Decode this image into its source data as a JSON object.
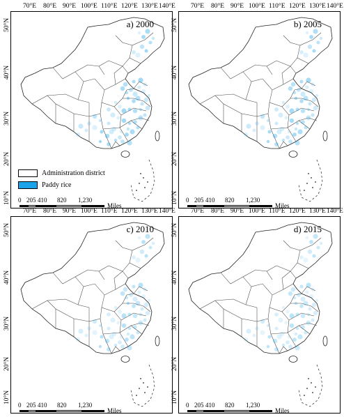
{
  "longitude_labels": [
    "70°E",
    "80°E",
    "90°E",
    "100°E",
    "110°E",
    "120°E",
    "130°E",
    "140°E"
  ],
  "latitude_labels": [
    "50°N",
    "40°N",
    "30°N",
    "20°N",
    "10°N"
  ],
  "panels": [
    {
      "title": "a) 2000",
      "rice_intensity": 0.85
    },
    {
      "title": "b) 2005",
      "rice_intensity": 0.8
    },
    {
      "title": "c) 2010",
      "rice_intensity": 0.65
    },
    {
      "title": "d) 2015",
      "rice_intensity": 0.6
    }
  ],
  "legend": {
    "district_label": "Administration district",
    "rice_label": "Paddy rice",
    "rice_color": "#1aa3e8",
    "district_color": "#ffffff"
  },
  "scale": {
    "ticks": [
      "0",
      "205",
      "410",
      "820",
      "1,230"
    ],
    "unit": "Miles"
  }
}
